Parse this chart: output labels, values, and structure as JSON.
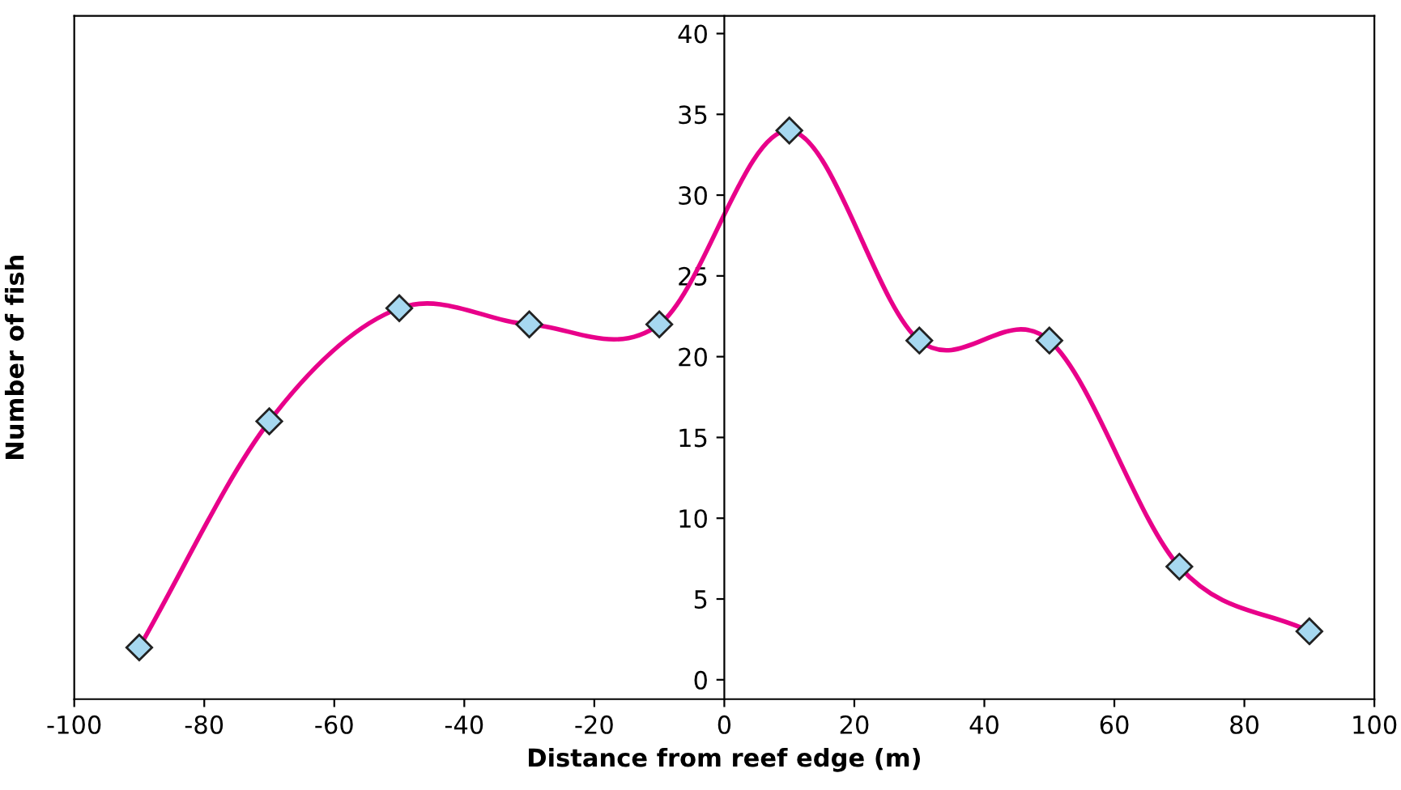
{
  "chart_data": {
    "type": "line",
    "xlabel": "Distance from reef edge (m)",
    "ylabel": "Number of fish",
    "x": [
      -90,
      -70,
      -50,
      -30,
      -10,
      10,
      30,
      50,
      70,
      90
    ],
    "series": [
      {
        "color": "#e8008a",
        "values": [
          2,
          16,
          23,
          22,
          22,
          34,
          21,
          21,
          7,
          3
        ]
      }
    ],
    "marker": "diamond",
    "line_style": "solid",
    "grid": false,
    "legend": false,
    "xlim": [
      -100,
      100
    ],
    "xticks": [
      -100,
      -80,
      -60,
      -40,
      -20,
      0,
      20,
      40,
      60,
      80,
      100
    ],
    "ylim": [
      -1.2,
      41.1
    ],
    "yticks": [
      0,
      5,
      10,
      15,
      20,
      25,
      30,
      35,
      40
    ]
  }
}
